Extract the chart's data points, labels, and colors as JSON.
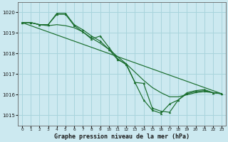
{
  "title": "Graphe pression niveau de la mer (hPa)",
  "background_color": "#cce9f0",
  "plot_bg_color": "#cce9f0",
  "grid_color": "#a8d4dc",
  "line_color": "#1a6e2e",
  "marker_color": "#1a6e2e",
  "xlim": [
    -0.5,
    23.5
  ],
  "ylim": [
    1014.5,
    1020.5
  ],
  "yticks": [
    1015,
    1016,
    1017,
    1018,
    1019,
    1020
  ],
  "xtick_labels": [
    "0",
    "1",
    "2",
    "3",
    "4",
    "5",
    "6",
    "7",
    "8",
    "9",
    "10",
    "11",
    "12",
    "13",
    "14",
    "15",
    "16",
    "17",
    "18",
    "19",
    "20",
    "21",
    "22",
    "23"
  ],
  "series": [
    {
      "x": [
        0,
        1,
        2,
        3,
        4,
        5,
        6,
        7,
        8,
        9,
        10,
        11,
        12,
        13,
        14,
        15,
        16,
        17,
        18,
        19,
        20,
        21,
        22,
        23
      ],
      "y": [
        1019.5,
        1019.5,
        1019.4,
        1019.4,
        1019.95,
        1019.95,
        1019.4,
        1019.15,
        1018.85,
        1018.6,
        1018.2,
        1017.7,
        1017.5,
        1016.6,
        1016.55,
        1015.35,
        1015.2,
        1015.15,
        1015.75,
        1016.1,
        1016.2,
        1016.25,
        1016.1,
        1016.05
      ],
      "has_markers": true
    },
    {
      "x": [
        0,
        1,
        2,
        3,
        4,
        5,
        6,
        7,
        8,
        9,
        10,
        11,
        12,
        13,
        14,
        15,
        16,
        17,
        18,
        19,
        20,
        21,
        22,
        23
      ],
      "y": [
        1019.5,
        1019.5,
        1019.4,
        1019.35,
        1019.4,
        1019.35,
        1019.25,
        1019.05,
        1018.75,
        1018.5,
        1018.2,
        1017.85,
        1017.5,
        1017.1,
        1016.7,
        1016.35,
        1016.1,
        1015.9,
        1015.9,
        1016.0,
        1016.1,
        1016.15,
        1016.1,
        1016.05
      ],
      "has_markers": false
    },
    {
      "x": [
        0,
        23
      ],
      "y": [
        1019.5,
        1016.05
      ],
      "has_markers": false
    },
    {
      "x": [
        0,
        1,
        2,
        3,
        4,
        5,
        6,
        7,
        8,
        9,
        10,
        11,
        12,
        13,
        14,
        15,
        16,
        17,
        18,
        19,
        20,
        21,
        22,
        23
      ],
      "y": [
        1019.5,
        1019.5,
        1019.4,
        1019.4,
        1019.9,
        1019.9,
        1019.35,
        1019.05,
        1018.7,
        1018.85,
        1018.3,
        1017.75,
        1017.45,
        1016.6,
        1015.75,
        1015.25,
        1015.1,
        1015.55,
        1015.75,
        1016.05,
        1016.15,
        1016.2,
        1016.1,
        1016.05
      ],
      "has_markers": true
    }
  ]
}
